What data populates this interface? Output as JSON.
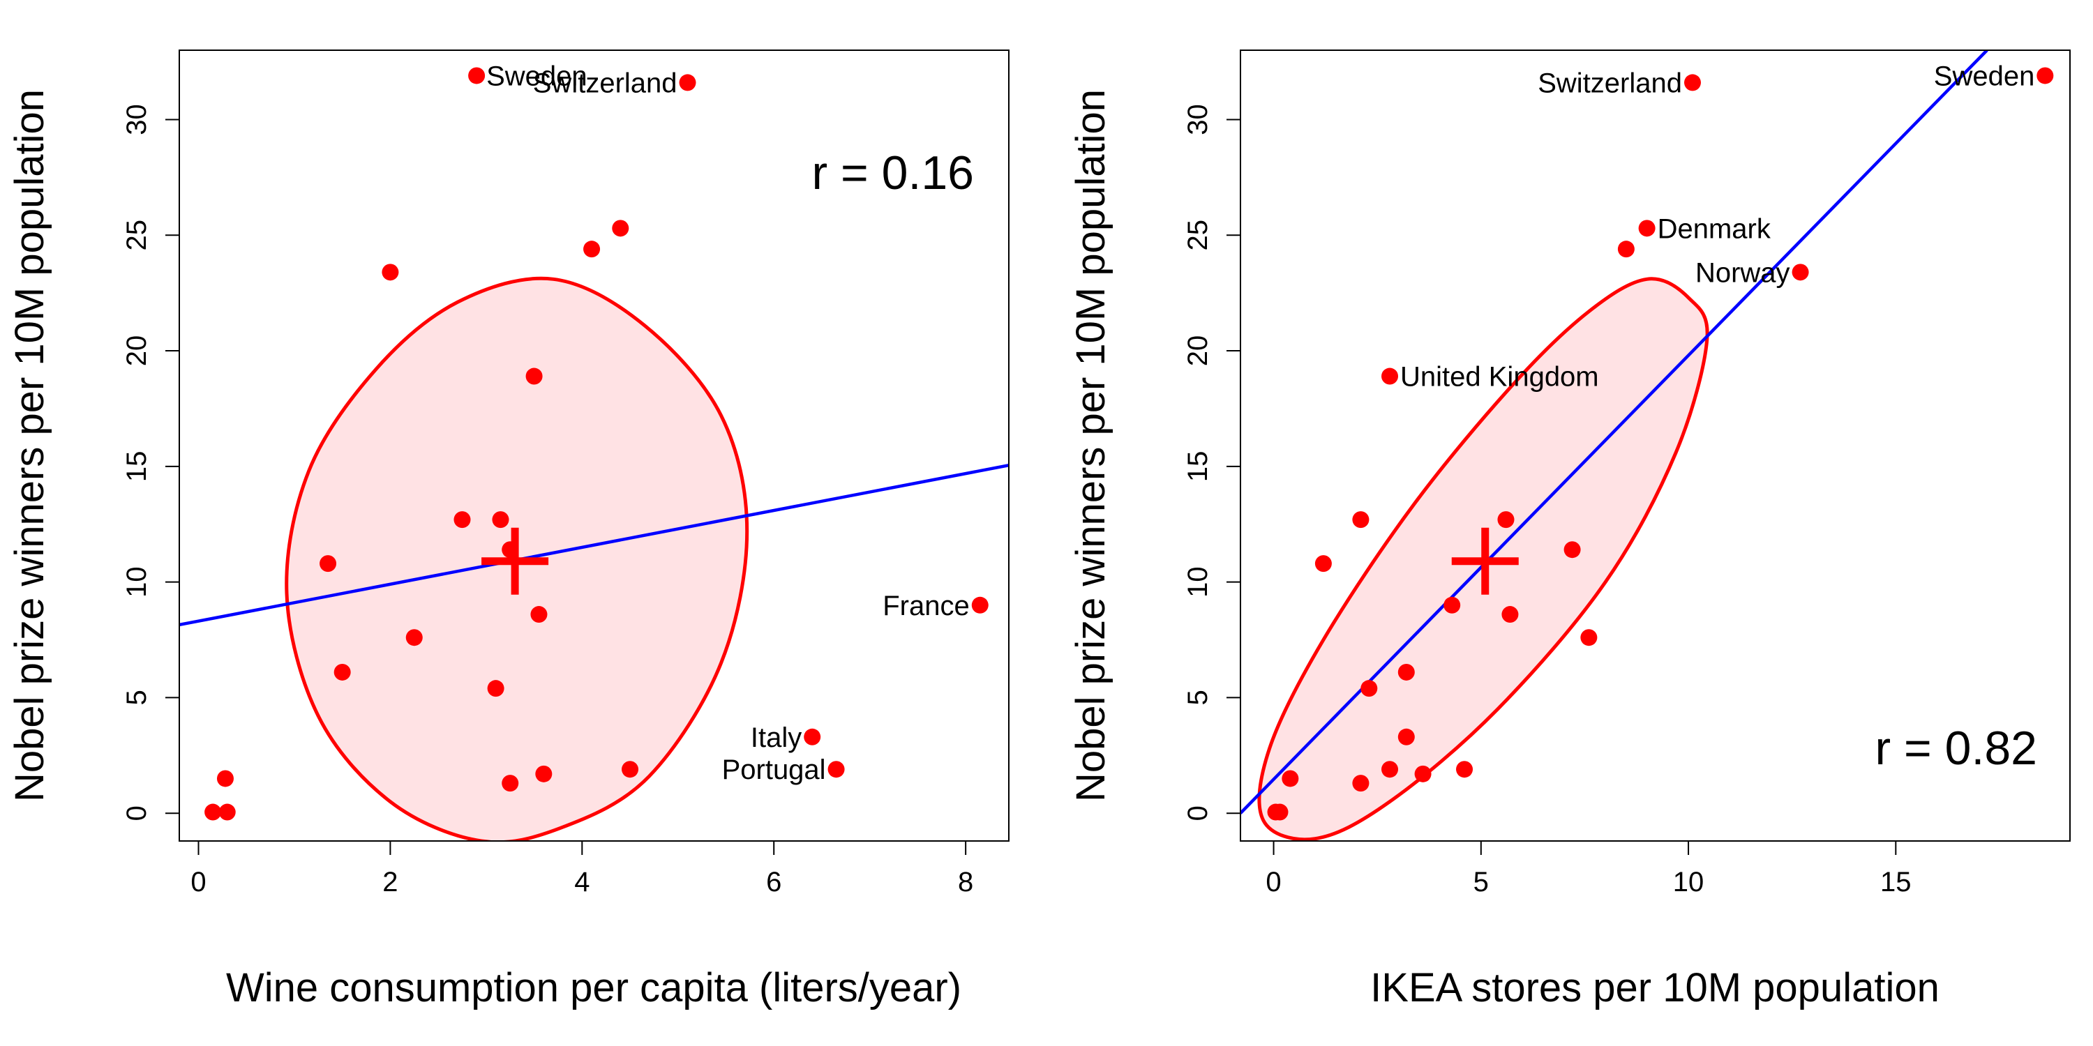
{
  "chart_data": [
    {
      "type": "scatter",
      "xlabel": "Wine consumption per capita (liters/year)",
      "ylabel": "Nobel prize winners per 10M population",
      "xlim": [
        -0.2,
        8.45
      ],
      "ylim": [
        -1.2,
        33.0
      ],
      "xticks": [
        0,
        2,
        4,
        6,
        8
      ],
      "yticks": [
        0,
        5,
        10,
        15,
        20,
        25,
        30
      ],
      "annotation": "r =  0.16",
      "points": [
        {
          "x": 2.9,
          "y": 31.9,
          "label": "Sweden"
        },
        {
          "x": 5.1,
          "y": 31.6,
          "label": "Switzerland"
        },
        {
          "x": 4.4,
          "y": 25.3,
          "label": ""
        },
        {
          "x": 4.1,
          "y": 24.4,
          "label": ""
        },
        {
          "x": 2.0,
          "y": 23.4,
          "label": ""
        },
        {
          "x": 3.5,
          "y": 18.9,
          "label": ""
        },
        {
          "x": 2.75,
          "y": 12.7,
          "label": ""
        },
        {
          "x": 3.15,
          "y": 12.7,
          "label": ""
        },
        {
          "x": 3.25,
          "y": 11.4,
          "label": ""
        },
        {
          "x": 1.35,
          "y": 10.8,
          "label": ""
        },
        {
          "x": 8.15,
          "y": 9.0,
          "label": "France"
        },
        {
          "x": 3.55,
          "y": 8.6,
          "label": ""
        },
        {
          "x": 2.25,
          "y": 7.6,
          "label": ""
        },
        {
          "x": 1.5,
          "y": 6.1,
          "label": ""
        },
        {
          "x": 3.1,
          "y": 5.4,
          "label": ""
        },
        {
          "x": 6.4,
          "y": 3.3,
          "label": "Italy"
        },
        {
          "x": 6.65,
          "y": 1.9,
          "label": "Portugal"
        },
        {
          "x": 4.5,
          "y": 1.9,
          "label": ""
        },
        {
          "x": 3.6,
          "y": 1.7,
          "label": ""
        },
        {
          "x": 3.25,
          "y": 1.3,
          "label": ""
        },
        {
          "x": 0.28,
          "y": 1.5,
          "label": ""
        },
        {
          "x": 0.15,
          "y": 0.05,
          "label": ""
        },
        {
          "x": 0.3,
          "y": 0.05,
          "label": ""
        }
      ],
      "centroid": {
        "x": 3.3,
        "y": 10.9
      },
      "regression_line": [
        {
          "x": -0.2,
          "y": 8.15
        },
        {
          "x": 8.45,
          "y": 15.05
        }
      ],
      "ellipse": [
        {
          "x": 3.7,
          "y": 23.1
        },
        {
          "x": 4.65,
          "y": 21.1
        },
        {
          "x": 5.45,
          "y": 17.2
        },
        {
          "x": 5.72,
          "y": 12.2
        },
        {
          "x": 5.45,
          "y": 6.5
        },
        {
          "x": 4.7,
          "y": 1.6
        },
        {
          "x": 3.8,
          "y": -0.6
        },
        {
          "x": 2.95,
          "y": -1.2
        },
        {
          "x": 2.0,
          "y": 0.5
        },
        {
          "x": 1.25,
          "y": 4.2
        },
        {
          "x": 0.92,
          "y": 9.5
        },
        {
          "x": 1.15,
          "y": 14.8
        },
        {
          "x": 1.85,
          "y": 19.2
        },
        {
          "x": 2.7,
          "y": 22.1
        }
      ],
      "colors": {
        "points": "#ff0000",
        "line": "#0000ff",
        "ellipse_stroke": "#ff0000",
        "ellipse_fill": "#ffe2e4"
      }
    },
    {
      "type": "scatter",
      "xlabel": "IKEA stores per 10M population",
      "ylabel": "Nobel prize winners per 10M population",
      "xlim": [
        -0.8,
        19.2
      ],
      "ylim": [
        -1.2,
        33.0
      ],
      "xticks": [
        0,
        5,
        10,
        15
      ],
      "yticks": [
        0,
        5,
        10,
        15,
        20,
        25,
        30
      ],
      "annotation": "r =  0.82",
      "points": [
        {
          "x": 18.6,
          "y": 31.9,
          "label": "Sweden"
        },
        {
          "x": 10.1,
          "y": 31.6,
          "label": "Switzerland"
        },
        {
          "x": 9.0,
          "y": 25.3,
          "label": "Denmark"
        },
        {
          "x": 8.5,
          "y": 24.4,
          "label": ""
        },
        {
          "x": 12.7,
          "y": 23.4,
          "label": "Norway"
        },
        {
          "x": 2.8,
          "y": 18.9,
          "label": "United Kingdom"
        },
        {
          "x": 2.1,
          "y": 12.7,
          "label": ""
        },
        {
          "x": 5.6,
          "y": 12.7,
          "label": ""
        },
        {
          "x": 7.2,
          "y": 11.4,
          "label": ""
        },
        {
          "x": 1.2,
          "y": 10.8,
          "label": ""
        },
        {
          "x": 4.3,
          "y": 9.0,
          "label": ""
        },
        {
          "x": 5.7,
          "y": 8.6,
          "label": ""
        },
        {
          "x": 7.6,
          "y": 7.6,
          "label": ""
        },
        {
          "x": 3.2,
          "y": 6.1,
          "label": ""
        },
        {
          "x": 2.3,
          "y": 5.4,
          "label": ""
        },
        {
          "x": 3.2,
          "y": 3.3,
          "label": ""
        },
        {
          "x": 2.8,
          "y": 1.9,
          "label": ""
        },
        {
          "x": 4.6,
          "y": 1.9,
          "label": ""
        },
        {
          "x": 3.6,
          "y": 1.7,
          "label": ""
        },
        {
          "x": 2.1,
          "y": 1.3,
          "label": ""
        },
        {
          "x": 0.4,
          "y": 1.5,
          "label": ""
        },
        {
          "x": 0.05,
          "y": 0.05,
          "label": ""
        },
        {
          "x": 0.15,
          "y": 0.05,
          "label": ""
        }
      ],
      "centroid": {
        "x": 5.1,
        "y": 10.9
      },
      "regression_line": [
        {
          "x": -0.8,
          "y": 0.0
        },
        {
          "x": 17.2,
          "y": 33.0
        }
      ],
      "ellipse": [
        {
          "x": 9.0,
          "y": 23.1
        },
        {
          "x": 10.0,
          "y": 22.3
        },
        {
          "x": 10.45,
          "y": 20.5
        },
        {
          "x": 9.7,
          "y": 15.6
        },
        {
          "x": 8.0,
          "y": 10.0
        },
        {
          "x": 5.4,
          "y": 4.5
        },
        {
          "x": 2.8,
          "y": 0.5
        },
        {
          "x": 1.0,
          "y": -1.1
        },
        {
          "x": -0.25,
          "y": -0.3
        },
        {
          "x": -0.1,
          "y": 2.8
        },
        {
          "x": 1.2,
          "y": 7.5
        },
        {
          "x": 3.4,
          "y": 13.4
        },
        {
          "x": 5.8,
          "y": 18.6
        },
        {
          "x": 7.6,
          "y": 21.7
        }
      ],
      "colors": {
        "points": "#ff0000",
        "line": "#0000ff",
        "ellipse_stroke": "#ff0000",
        "ellipse_fill": "#ffe2e4"
      }
    }
  ]
}
